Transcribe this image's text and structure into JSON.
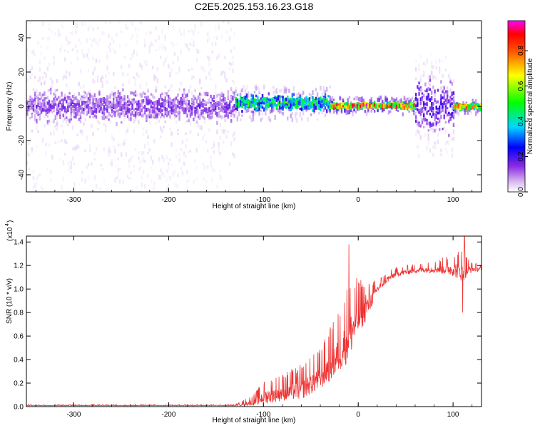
{
  "figure": {
    "title": "C2E5.2025.153.16.23.G18"
  },
  "chart_data": [
    {
      "type": "heatmap",
      "xlabel": "Height of straight line (km)",
      "ylabel": "Frequency (Hz)",
      "xlim": [
        -350,
        130
      ],
      "ylim": [
        -50,
        50
      ],
      "x_ticks": [
        -300,
        -200,
        -100,
        0,
        100
      ],
      "y_ticks": [
        -40,
        -20,
        0,
        20,
        40
      ],
      "colorbar": {
        "label": "Normalized spectral amplitude",
        "range": [
          0.0,
          0.97
        ],
        "ticks": [
          0.0,
          0.2,
          0.4,
          0.6,
          0.8
        ],
        "colors": [
          "#ffffff",
          "#8a2be2",
          "#0000ff",
          "#00ffff",
          "#00ff00",
          "#ffff00",
          "#ff8c00",
          "#ff0000",
          "#ff00ff"
        ]
      },
      "regions": [
        {
          "x": [
            -350,
            -130
          ],
          "center_hz": 0,
          "core_halfwidth_hz": 12,
          "halo_halfwidth_hz": 50,
          "typical_amplitude": 0.15
        },
        {
          "x": [
            -130,
            -30
          ],
          "center_hz": 2,
          "core_halfwidth_hz": 6,
          "halo_halfwidth_hz": 10,
          "typical_amplitude": 0.45
        },
        {
          "x": [
            -30,
            60
          ],
          "center_hz": 0.5,
          "core_halfwidth_hz": 2,
          "halo_halfwidth_hz": 5,
          "typical_amplitude": 0.8
        },
        {
          "x": [
            60,
            100
          ],
          "center_hz": 0,
          "core_halfwidth_hz": 20,
          "halo_halfwidth_hz": 30,
          "typical_amplitude": 0.2
        },
        {
          "x": [
            100,
            130
          ],
          "center_hz": 0,
          "core_halfwidth_hz": 2,
          "halo_halfwidth_hz": 4,
          "typical_amplitude": 0.75
        }
      ]
    },
    {
      "type": "line",
      "xlabel": "Height of straight line (km)",
      "ylabel": "SNR (10 * v/v)",
      "y_multiplier_label": "(x10",
      "y_multiplier_exp": "4",
      "xlim": [
        -350,
        130
      ],
      "ylim": [
        0,
        1.45
      ],
      "x_ticks": [
        -300,
        -200,
        -100,
        0,
        100
      ],
      "y_ticks": [
        "0.0",
        "0.2",
        "0.4",
        "0.6",
        "0.8",
        "1.0",
        "1.2",
        "1.4"
      ],
      "line_color": "#ee3333",
      "series": [
        {
          "x": [
            -350,
            -130,
            -110,
            -100,
            -80,
            -60,
            -40,
            -20,
            -10,
            0,
            10,
            20,
            30,
            40,
            60,
            80,
            100,
            110,
            120,
            130
          ],
          "y": [
            0.01,
            0.01,
            0.04,
            0.08,
            0.12,
            0.15,
            0.25,
            0.45,
            0.6,
            0.75,
            0.85,
            1.0,
            1.08,
            1.13,
            1.16,
            1.17,
            1.17,
            1.15,
            1.17,
            1.17
          ],
          "noise_amplitude": [
            0.005,
            0.005,
            0.05,
            0.1,
            0.12,
            0.15,
            0.18,
            0.28,
            0.35,
            0.25,
            0.15,
            0.06,
            0.05,
            0.04,
            0.04,
            0.05,
            0.1,
            0.15,
            0.04,
            0.03
          ],
          "peaks": [
            {
              "x": -10,
              "y": 1.38
            },
            {
              "x": 8,
              "y": 0.95
            },
            {
              "x": 112,
              "y": 1.45
            },
            {
              "x": 110,
              "y": 0.8
            }
          ]
        }
      ]
    }
  ]
}
